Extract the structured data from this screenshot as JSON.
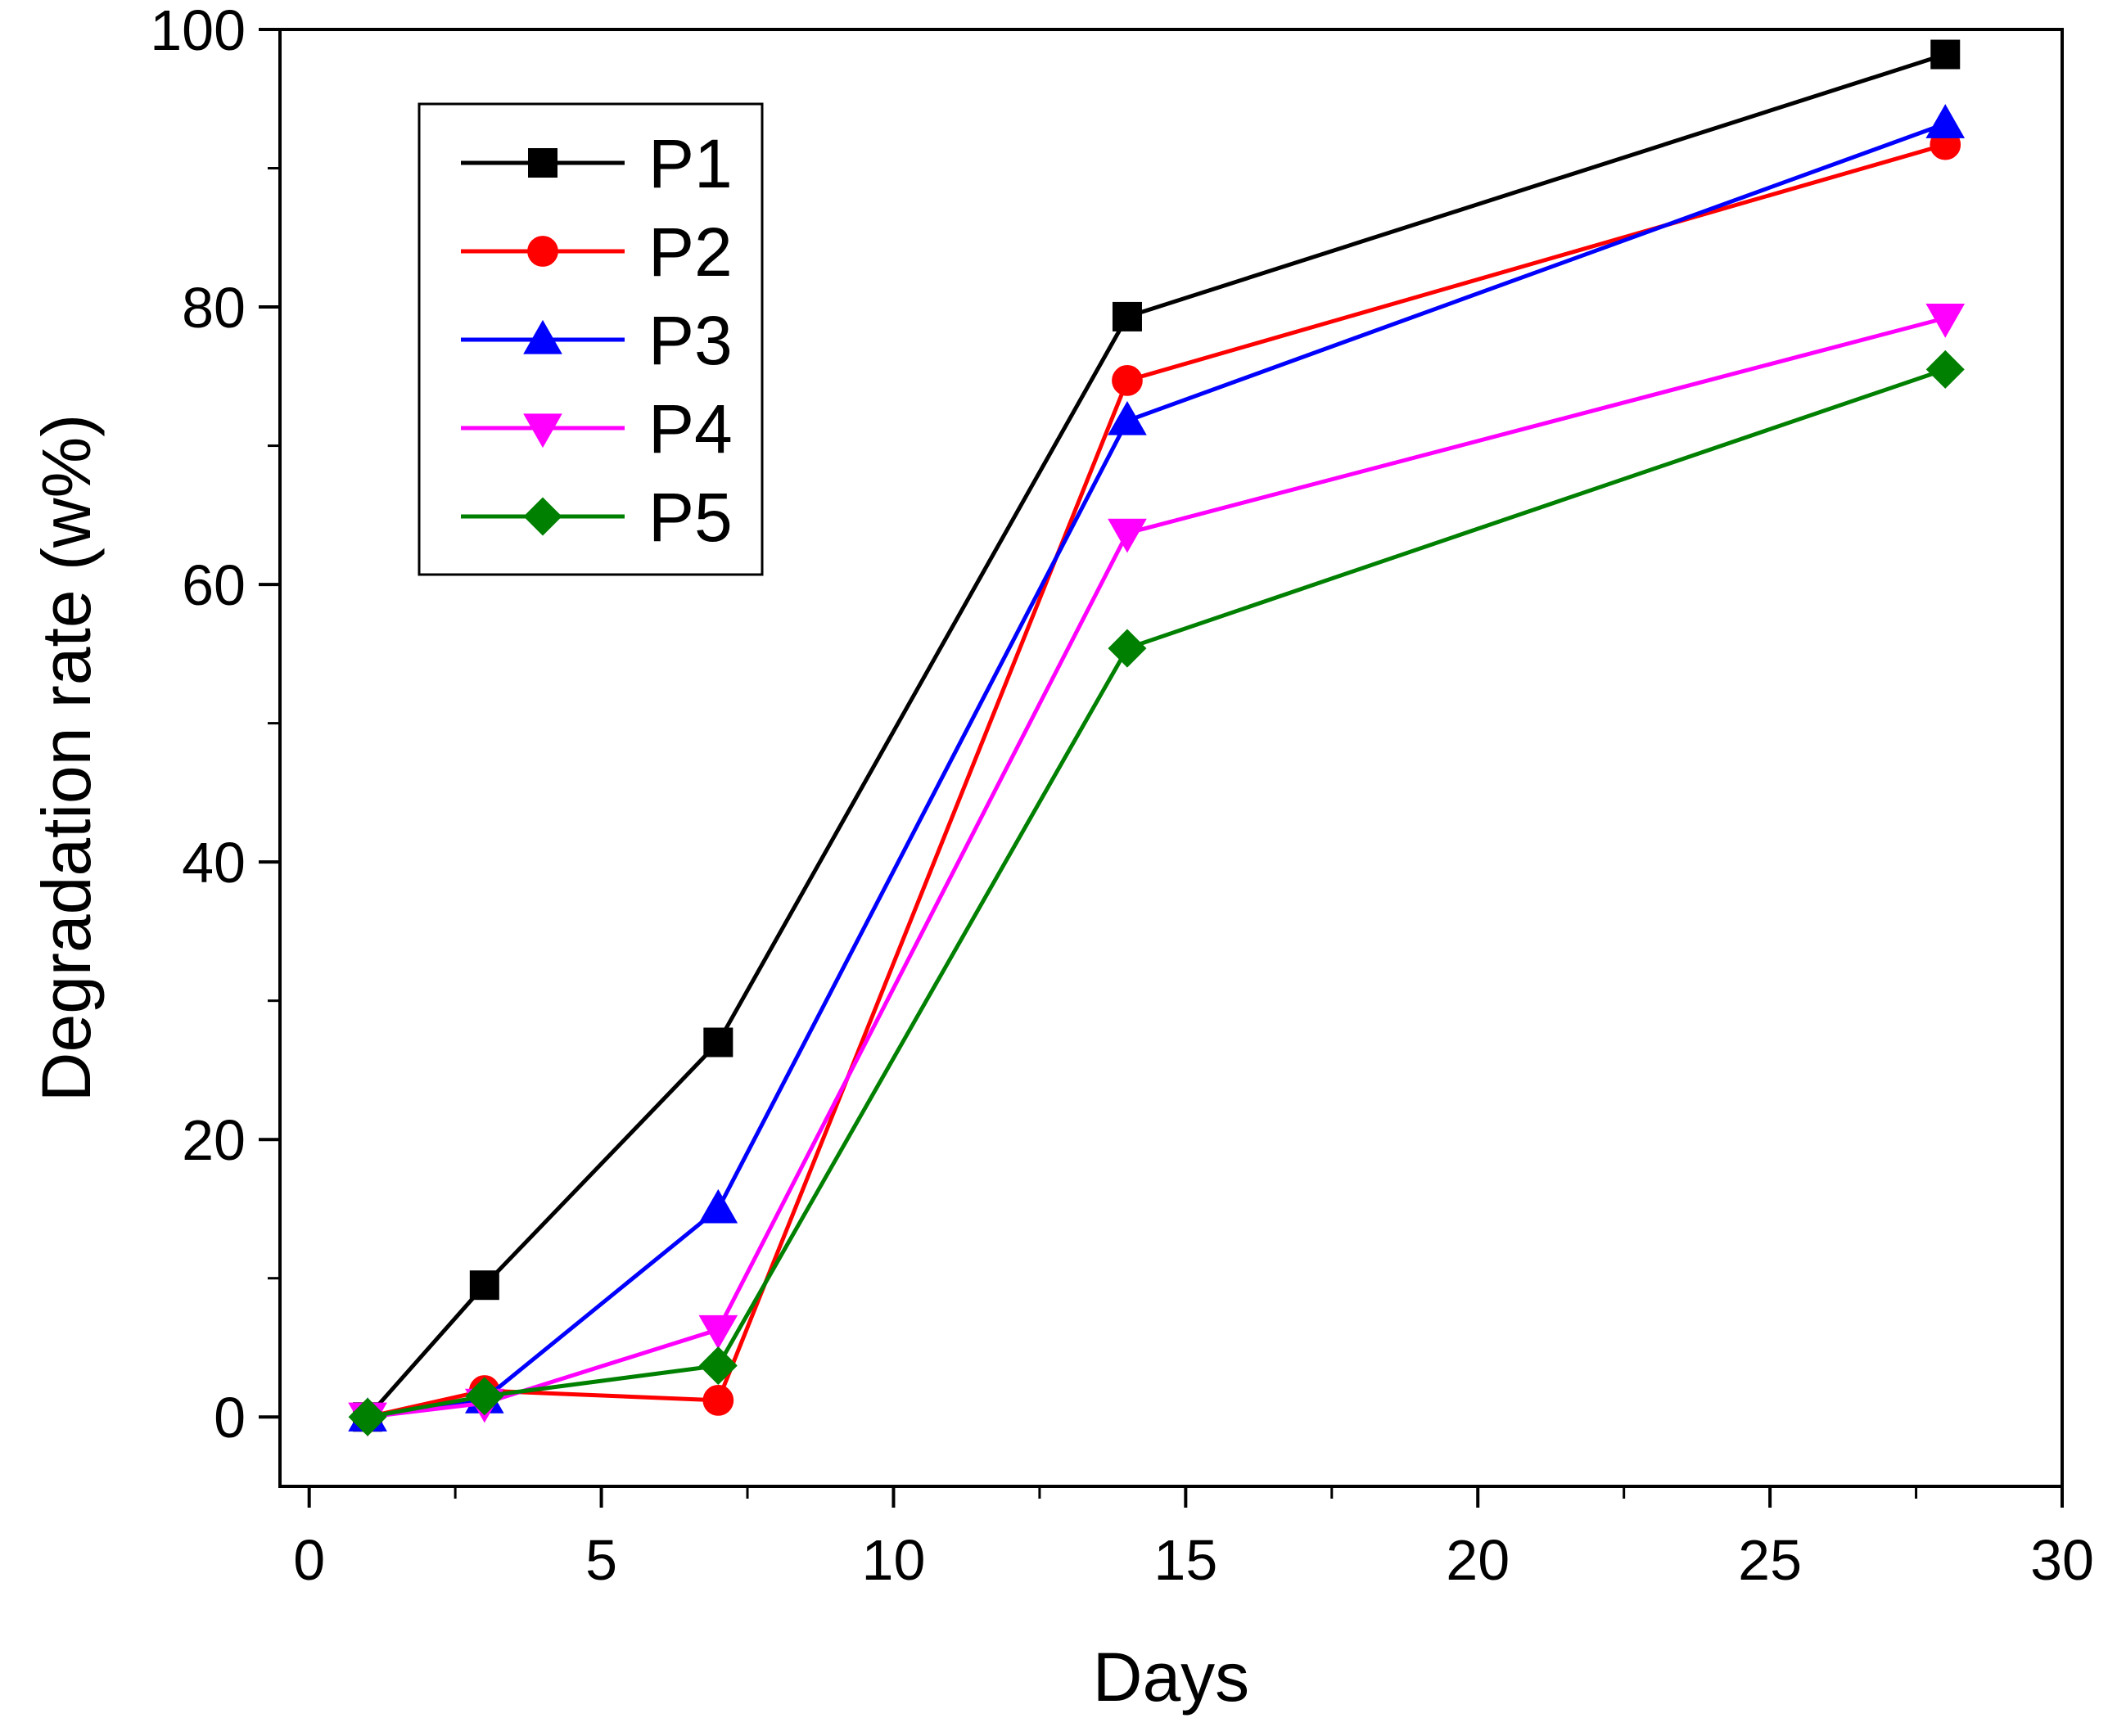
{
  "chart_data": {
    "type": "line",
    "title": "",
    "xlabel": "Days",
    "ylabel": "Degradation rate (w%)",
    "xlim": [
      -0.5,
      30
    ],
    "ylim": [
      -5,
      100
    ],
    "x_ticks": [
      0,
      5,
      10,
      15,
      20,
      25,
      30
    ],
    "y_ticks": [
      0,
      20,
      40,
      60,
      80,
      100
    ],
    "legend_position": "top-left",
    "grid": false,
    "x": [
      1,
      3,
      7,
      14,
      28
    ],
    "series": [
      {
        "name": "P1",
        "color": "#000000",
        "marker": "square",
        "values": [
          0,
          9.5,
          27,
          79.3,
          98.2
        ]
      },
      {
        "name": "P2",
        "color": "#ff0000",
        "marker": "circle",
        "values": [
          0,
          1.9,
          1.2,
          74.7,
          91.7
        ]
      },
      {
        "name": "P3",
        "color": "#0000ff",
        "marker": "triangle-up",
        "values": [
          0,
          1.3,
          15,
          71.8,
          93.2
        ]
      },
      {
        "name": "P4",
        "color": "#ff00ff",
        "marker": "triangle-down",
        "values": [
          0,
          1.0,
          6.3,
          63.7,
          79.2
        ]
      },
      {
        "name": "P5",
        "color": "#008000",
        "marker": "diamond",
        "values": [
          0,
          1.5,
          3.7,
          55.4,
          75.5
        ]
      }
    ]
  }
}
